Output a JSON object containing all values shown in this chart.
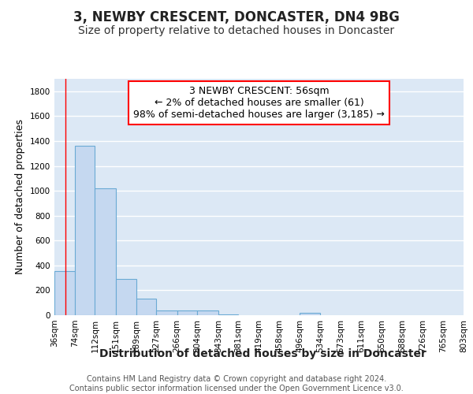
{
  "title": "3, NEWBY CRESCENT, DONCASTER, DN4 9BG",
  "subtitle": "Size of property relative to detached houses in Doncaster",
  "xlabel": "Distribution of detached houses by size in Doncaster",
  "ylabel": "Number of detached properties",
  "annotation_line1": "3 NEWBY CRESCENT: 56sqm",
  "annotation_line2": "← 2% of detached houses are smaller (61)",
  "annotation_line3": "98% of semi-detached houses are larger (3,185) →",
  "footer_line1": "Contains HM Land Registry data © Crown copyright and database right 2024.",
  "footer_line2": "Contains public sector information licensed under the Open Government Licence v3.0.",
  "bar_left_edges": [
    36,
    74,
    112,
    151,
    189,
    227,
    266,
    304,
    343,
    381,
    419,
    458,
    496,
    534,
    573,
    611,
    650,
    688,
    726,
    765
  ],
  "bar_right_edges": [
    74,
    112,
    151,
    189,
    227,
    266,
    304,
    343,
    381,
    419,
    458,
    496,
    534,
    573,
    611,
    650,
    688,
    726,
    765,
    803
  ],
  "bar_heights": [
    355,
    1360,
    1020,
    290,
    130,
    40,
    35,
    35,
    5,
    0,
    0,
    0,
    20,
    0,
    0,
    0,
    0,
    0,
    0,
    0
  ],
  "bar_color": "#c5d8f0",
  "bar_edge_color": "#6aaad4",
  "bar_edge_width": 0.8,
  "red_line_x": 56,
  "ylim": [
    0,
    1900
  ],
  "yticks": [
    0,
    200,
    400,
    600,
    800,
    1000,
    1200,
    1400,
    1600,
    1800
  ],
  "xtick_labels": [
    "36sqm",
    "74sqm",
    "112sqm",
    "151sqm",
    "189sqm",
    "227sqm",
    "266sqm",
    "304sqm",
    "343sqm",
    "381sqm",
    "419sqm",
    "458sqm",
    "496sqm",
    "534sqm",
    "573sqm",
    "611sqm",
    "650sqm",
    "688sqm",
    "726sqm",
    "765sqm",
    "803sqm"
  ],
  "xtick_positions": [
    36,
    74,
    112,
    151,
    189,
    227,
    266,
    304,
    343,
    381,
    419,
    458,
    496,
    534,
    573,
    611,
    650,
    688,
    726,
    765,
    803
  ],
  "fig_bg_color": "#ffffff",
  "plot_bg_color": "#dce8f5",
  "grid_color": "#ffffff",
  "title_fontsize": 12,
  "subtitle_fontsize": 10,
  "ylabel_fontsize": 9,
  "xlabel_fontsize": 10,
  "annotation_fontsize": 9,
  "footer_fontsize": 7,
  "tick_fontsize": 7.5
}
